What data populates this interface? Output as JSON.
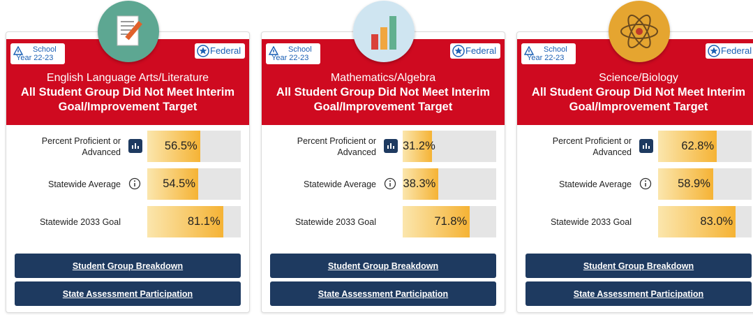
{
  "cards": [
    {
      "badge_line1": "School",
      "badge_line2": "Year 22-23",
      "federal": "Federal",
      "subject": "English Language Arts/Literature",
      "status": "All Student Group Did Not Meet Interim Goal/Improvement Target",
      "metrics": [
        {
          "label": "Percent Proficient or Advanced",
          "value": 56.5,
          "value_label": "56.5%"
        },
        {
          "label": "Statewide Average",
          "value": 54.5,
          "value_label": "54.5%"
        },
        {
          "label": "Statewide 2033 Goal",
          "value": 81.1,
          "value_label": "81.1%"
        }
      ],
      "buttons": [
        "Student Group Breakdown",
        "State Assessment Participation"
      ]
    },
    {
      "badge_line1": "School",
      "badge_line2": "Year 22-23",
      "federal": "Federal",
      "subject": "Mathematics/Algebra",
      "status": "All Student Group Did Not Meet Interim Goal/Improvement Target",
      "metrics": [
        {
          "label": "Percent Proficient or Advanced",
          "value": 31.2,
          "value_label": "31.2%"
        },
        {
          "label": "Statewide Average",
          "value": 38.3,
          "value_label": "38.3%"
        },
        {
          "label": "Statewide 2033 Goal",
          "value": 71.8,
          "value_label": "71.8%"
        }
      ],
      "buttons": [
        "Student Group Breakdown",
        "State Assessment Participation"
      ]
    },
    {
      "badge_line1": "School",
      "badge_line2": "Year 22-23",
      "federal": "Federal",
      "subject": "Science/Biology",
      "status": "All Student Group Did Not Meet Interim Goal/Improvement Target",
      "metrics": [
        {
          "label": "Percent Proficient or Advanced",
          "value": 62.8,
          "value_label": "62.8%"
        },
        {
          "label": "Statewide Average",
          "value": 58.9,
          "value_label": "58.9%"
        },
        {
          "label": "Statewide 2033 Goal",
          "value": 83.0,
          "value_label": "83.0%"
        }
      ],
      "buttons": [
        "Student Group Breakdown",
        "State Assessment Participation"
      ]
    }
  ]
}
